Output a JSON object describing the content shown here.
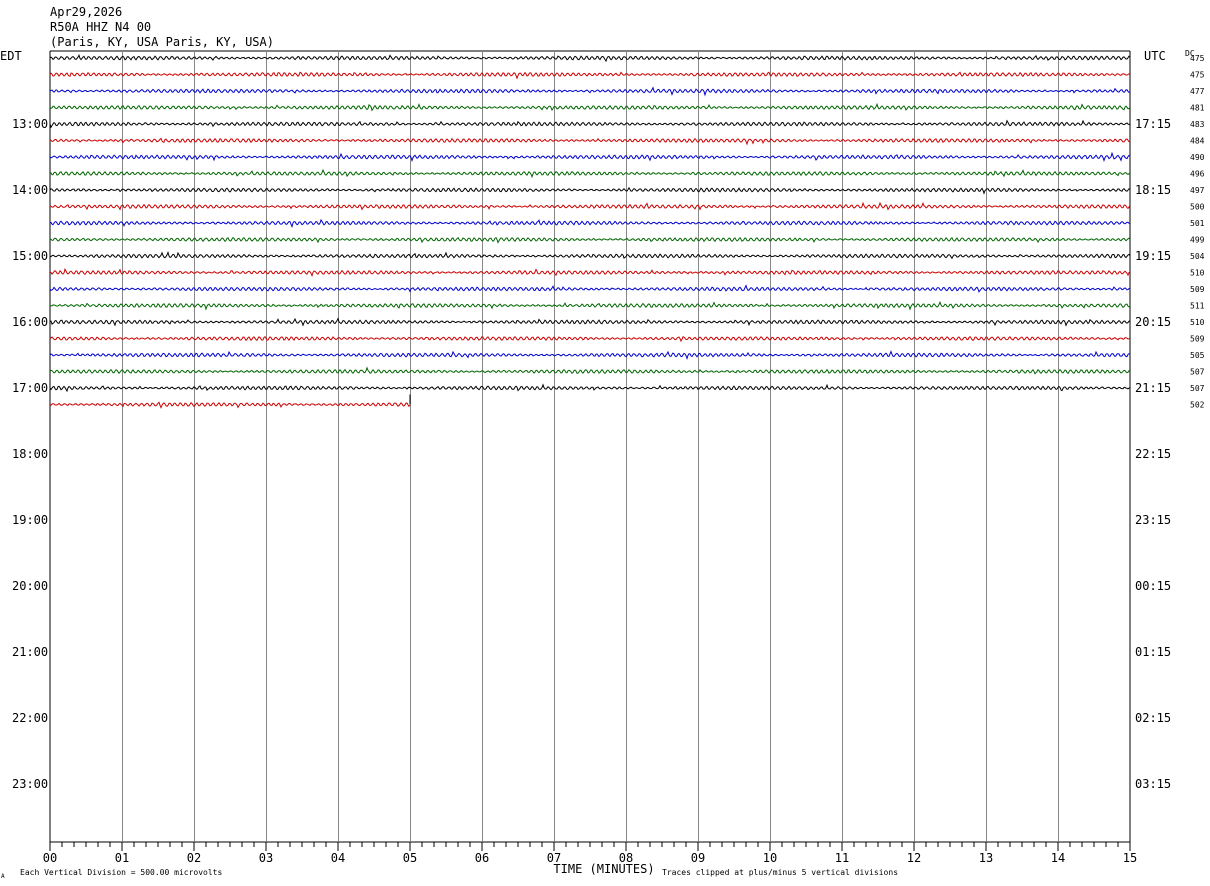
{
  "header": {
    "date": "Apr29,2026",
    "station": "R50A HHZ N4 00",
    "location": "(Paris, KY, USA Paris, KY, USA)"
  },
  "left_tz_label": "EDT",
  "right_tz_label": "UTC",
  "dc_label": "DC",
  "footer": {
    "scale_note": "Each Vertical Division =  500.00 microvolts",
    "xlabel": "TIME (MINUTES)",
    "clip_note": "Traces clipped at plus/minus 5 vertical divisions",
    "corner_mark": "A"
  },
  "chart_data": {
    "type": "line",
    "xlabel": "TIME (MINUTES)",
    "xlim": [
      0,
      15
    ],
    "x_ticks": [
      "00",
      "01",
      "02",
      "03",
      "04",
      "05",
      "06",
      "07",
      "08",
      "09",
      "10",
      "11",
      "12",
      "13",
      "14",
      "15"
    ],
    "rows_per_hour": 4,
    "total_rows": 48,
    "left_hour_labels": [
      "13:00",
      "14:00",
      "15:00",
      "16:00",
      "17:00",
      "18:00",
      "19:00",
      "20:00",
      "21:00",
      "22:00",
      "23:00"
    ],
    "right_hour_labels": [
      "17:15",
      "18:15",
      "19:15",
      "20:15",
      "21:15",
      "22:15",
      "23:15",
      "00:15",
      "01:15",
      "02:15",
      "03:15"
    ],
    "trace_colors": [
      "#000000",
      "#cc0000",
      "#0000cc",
      "#006600"
    ],
    "traces": [
      {
        "dc": "475",
        "end_minute": 15
      },
      {
        "dc": "475",
        "end_minute": 15
      },
      {
        "dc": "477",
        "end_minute": 15
      },
      {
        "dc": "481",
        "end_minute": 15
      },
      {
        "dc": "483",
        "end_minute": 15
      },
      {
        "dc": "484",
        "end_minute": 15
      },
      {
        "dc": "490",
        "end_minute": 15
      },
      {
        "dc": "496",
        "end_minute": 15
      },
      {
        "dc": "497",
        "end_minute": 15
      },
      {
        "dc": "500",
        "end_minute": 15
      },
      {
        "dc": "501",
        "end_minute": 15
      },
      {
        "dc": "499",
        "end_minute": 15
      },
      {
        "dc": "504",
        "end_minute": 15
      },
      {
        "dc": "510",
        "end_minute": 15
      },
      {
        "dc": "509",
        "end_minute": 15
      },
      {
        "dc": "511",
        "end_minute": 15
      },
      {
        "dc": "510",
        "end_minute": 15
      },
      {
        "dc": "509",
        "end_minute": 15
      },
      {
        "dc": "505",
        "end_minute": 15
      },
      {
        "dc": "507",
        "end_minute": 15
      },
      {
        "dc": "507",
        "end_minute": 15
      },
      {
        "dc": "502",
        "end_minute": 5
      }
    ]
  }
}
